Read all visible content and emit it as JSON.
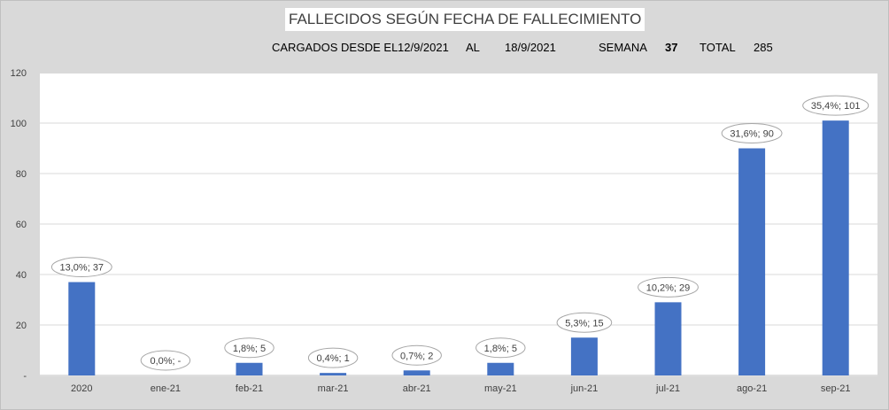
{
  "header": {
    "title": "FALLECIDOS SEGÚN FECHA DE FALLECIMIENTO",
    "loaded_label": "CARGADOS DESDE EL",
    "date_from": "12/9/2021",
    "al_label": "AL",
    "date_to": "18/9/2021",
    "week_label": "SEMANA",
    "week_value": "37",
    "total_label": "TOTAL",
    "total_value": "285"
  },
  "chart_data": {
    "type": "bar",
    "title": "FALLECIDOS SEGÚN FECHA DE FALLECIMIENTO",
    "xlabel": "",
    "ylabel": "",
    "categories": [
      "2020",
      "ene-21",
      "feb-21",
      "mar-21",
      "abr-21",
      "may-21",
      "jun-21",
      "jul-21",
      "ago-21",
      "sep-21"
    ],
    "values": [
      37,
      0,
      5,
      1,
      2,
      5,
      15,
      29,
      90,
      101
    ],
    "data_labels": [
      "13,0%; 37",
      "0,0%; -",
      "1,8%; 5",
      "0,4%; 1",
      "0,7%; 2",
      "1,8%; 5",
      "5,3%; 15",
      "10,2%; 29",
      "31,6%; 90",
      "35,4%; 101"
    ],
    "ylim": [
      0,
      120
    ],
    "yticks": [
      "-",
      "20",
      "40",
      "60",
      "80",
      "100",
      "120"
    ],
    "grid": true,
    "bar_color": "#4472c4",
    "gridline_color": "#d9d9d9"
  }
}
